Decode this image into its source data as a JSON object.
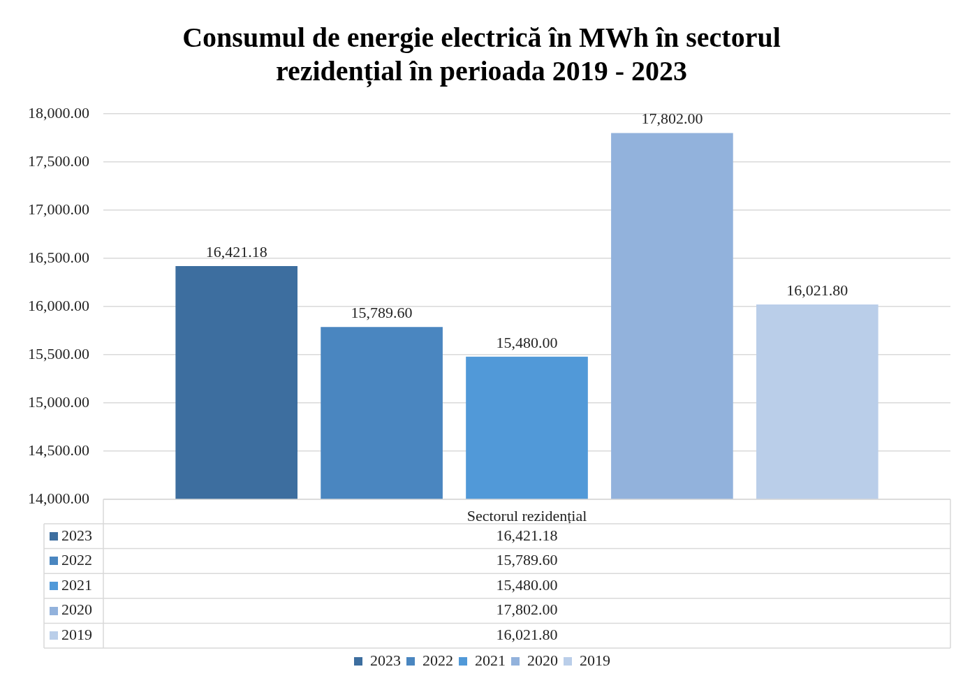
{
  "chart_data": {
    "type": "bar",
    "title": "Consumul de energie electrică în MWh în sectorul rezidențial în perioada 2019 - 2023",
    "categories": [
      "Sectorul rezidențial"
    ],
    "series": [
      {
        "name": "2023",
        "color": "#3d6e9f",
        "values": [
          16421.18
        ],
        "value_labels": [
          "16,421.18"
        ]
      },
      {
        "name": "2022",
        "color": "#4a86c0",
        "values": [
          15789.6
        ],
        "value_labels": [
          "15,789.60"
        ]
      },
      {
        "name": "2021",
        "color": "#5199d8",
        "values": [
          15480
        ],
        "value_labels": [
          "15,480.00"
        ]
      },
      {
        "name": "2020",
        "color": "#92b2dc",
        "values": [
          17802
        ],
        "value_labels": [
          "17,802.00"
        ]
      },
      {
        "name": "2019",
        "color": "#bacee9",
        "values": [
          16021.8
        ],
        "value_labels": [
          "16,021.80"
        ]
      }
    ],
    "ylim": [
      14000,
      18000
    ],
    "yticks": [
      {
        "value": 14000,
        "label": "14,000.00"
      },
      {
        "value": 14500,
        "label": "14,500.00"
      },
      {
        "value": 15000,
        "label": "15,000.00"
      },
      {
        "value": 15500,
        "label": "15,500.00"
      },
      {
        "value": 16000,
        "label": "16,000.00"
      },
      {
        "value": 16500,
        "label": "16,500.00"
      },
      {
        "value": 17000,
        "label": "17,000.00"
      },
      {
        "value": 17500,
        "label": "17,500.00"
      },
      {
        "value": 18000,
        "label": "18,000.00"
      }
    ],
    "grid": "y",
    "legend": "bottom"
  }
}
